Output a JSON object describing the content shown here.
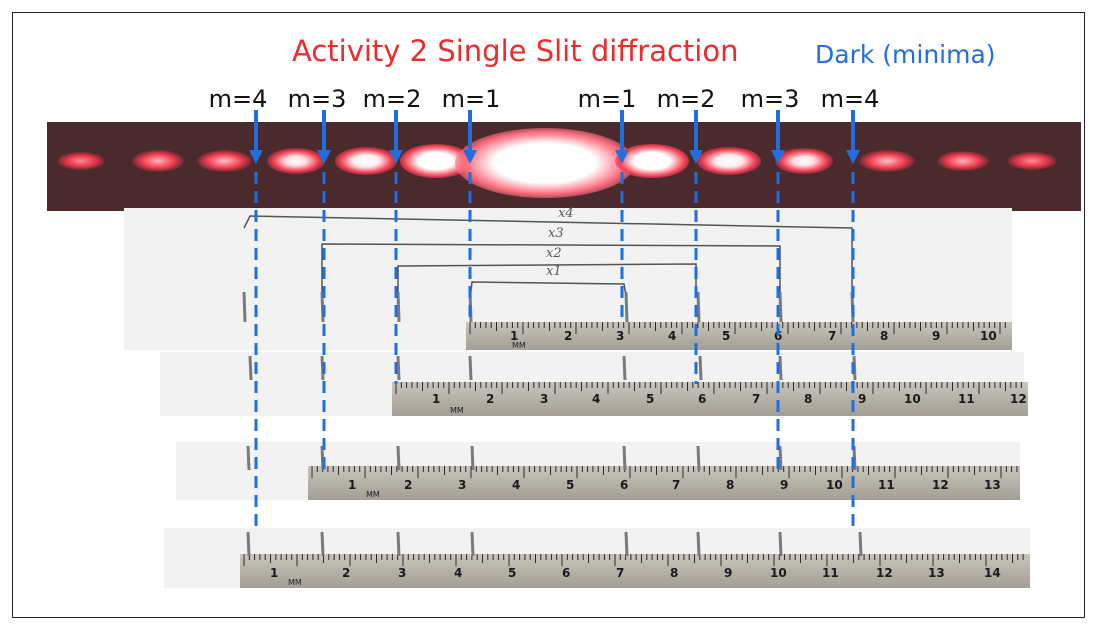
{
  "title": "Activity 2 Single Slit diffraction",
  "dark_label": "Dark (minima)",
  "order_labels": [
    {
      "text": "m=4",
      "side": "left"
    },
    {
      "text": "m=3",
      "side": "left"
    },
    {
      "text": "m=2",
      "side": "left"
    },
    {
      "text": "m=1",
      "side": "left"
    },
    {
      "text": "m=1",
      "side": "right"
    },
    {
      "text": "m=2",
      "side": "right"
    },
    {
      "text": "m=3",
      "side": "right"
    },
    {
      "text": "m=4",
      "side": "right"
    }
  ],
  "bracket_labels": [
    "x4",
    "x3",
    "x2",
    "x1"
  ],
  "rulers": [
    {
      "unit": "MM",
      "numbers": [
        "1",
        "2",
        "3",
        "4",
        "5",
        "6",
        "7",
        "8",
        "9",
        "10"
      ]
    },
    {
      "unit": "MM",
      "numbers": [
        "1",
        "2",
        "3",
        "4",
        "5",
        "6",
        "7",
        "8",
        "9",
        "10",
        "11",
        "12"
      ]
    },
    {
      "unit": "MM",
      "numbers": [
        "1",
        "2",
        "3",
        "4",
        "5",
        "6",
        "7",
        "8",
        "9",
        "10",
        "11",
        "12",
        "13"
      ]
    },
    {
      "unit": "MM",
      "numbers": [
        "1",
        "2",
        "3",
        "4",
        "5",
        "6",
        "7",
        "8",
        "9",
        "10",
        "11",
        "12",
        "13",
        "14"
      ]
    }
  ],
  "colors": {
    "title": "#ee2b2b",
    "dark_label": "#1f6fe0",
    "arrow": "#1f6fe0",
    "dashed_line": "#1f6fe0",
    "laser": "#ff3b4a"
  }
}
